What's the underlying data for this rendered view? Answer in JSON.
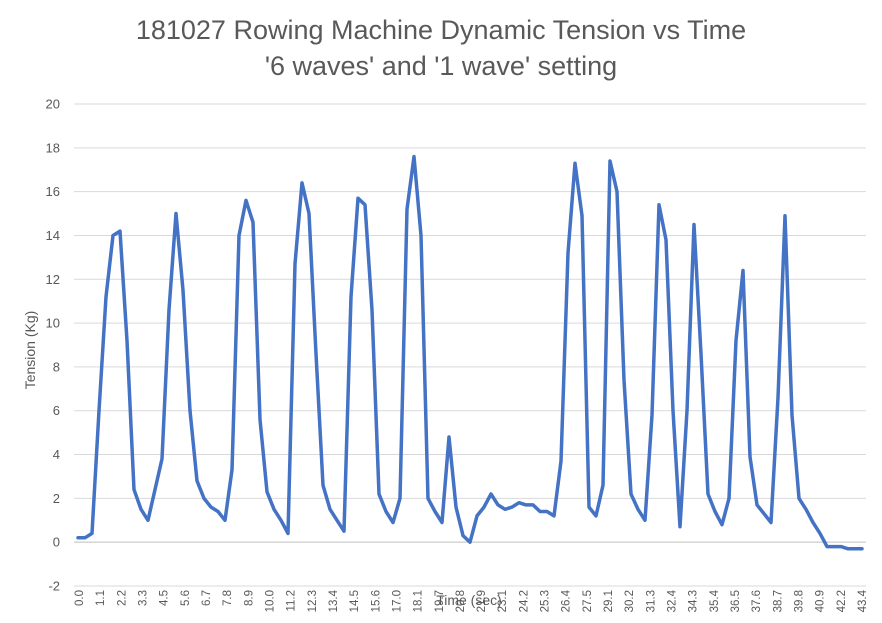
{
  "chart_data": {
    "type": "line",
    "title_lines": [
      "181027 Rowing Machine Dynamic Tension vs Time",
      "'6 waves' and '1 wave' setting"
    ],
    "xlabel": "Time (sec)",
    "ylabel": "Tension (Kg)",
    "ylim": [
      -2,
      20
    ],
    "ytick_step": 2,
    "grid": "horizontal",
    "line_color": "#4472C4",
    "x_tick_labels": [
      "0.0",
      "1.1",
      "2.2",
      "3.3",
      "4.5",
      "5.6",
      "6.7",
      "7.8",
      "8.9",
      "10.0",
      "11.2",
      "12.3",
      "13.4",
      "14.5",
      "15.6",
      "17.0",
      "18.1",
      "19.7",
      "20.8",
      "21.9",
      "23.1",
      "24.2",
      "25.3",
      "26.4",
      "27.5",
      "29.1",
      "30.2",
      "31.3",
      "32.4",
      "34.3",
      "35.4",
      "36.5",
      "37.6",
      "38.7",
      "39.8",
      "40.9",
      "42.2",
      "43.4"
    ],
    "series": [
      {
        "values": [
          0.2,
          0.2,
          0.4,
          6.0,
          11.2,
          14.0,
          14.2,
          9.2,
          2.4,
          1.5,
          1.0,
          2.4,
          3.8,
          10.6,
          15.0,
          11.5,
          6.0,
          2.8,
          2.0,
          1.6,
          1.4,
          1.0,
          3.3,
          14.0,
          15.6,
          14.6,
          5.6,
          2.3,
          1.5,
          1.0,
          0.4,
          12.7,
          16.4,
          15.0,
          8.6,
          2.6,
          1.5,
          1.0,
          0.5,
          11.2,
          15.7,
          15.4,
          10.6,
          2.2,
          1.4,
          0.9,
          2.0,
          15.2,
          17.6,
          14.0,
          2.0,
          1.4,
          0.9,
          4.8,
          1.6,
          0.3,
          0.0,
          1.2,
          1.6,
          2.2,
          1.7,
          1.5,
          1.6,
          1.8,
          1.7,
          1.7,
          1.4,
          1.4,
          1.2,
          3.7,
          13.2,
          17.3,
          14.9,
          1.6,
          1.2,
          2.6,
          17.4,
          16.0,
          7.4,
          2.2,
          1.5,
          1.0,
          5.8,
          15.4,
          13.8,
          6.0,
          0.7,
          6.0,
          14.5,
          8.6,
          2.2,
          1.4,
          0.8,
          2.0,
          9.2,
          12.4,
          3.9,
          1.7,
          1.3,
          0.9,
          6.6,
          14.9,
          5.8,
          2.0,
          1.5,
          0.9,
          0.4,
          -0.2,
          -0.2,
          -0.2,
          -0.3,
          -0.3,
          -0.3
        ]
      }
    ]
  }
}
